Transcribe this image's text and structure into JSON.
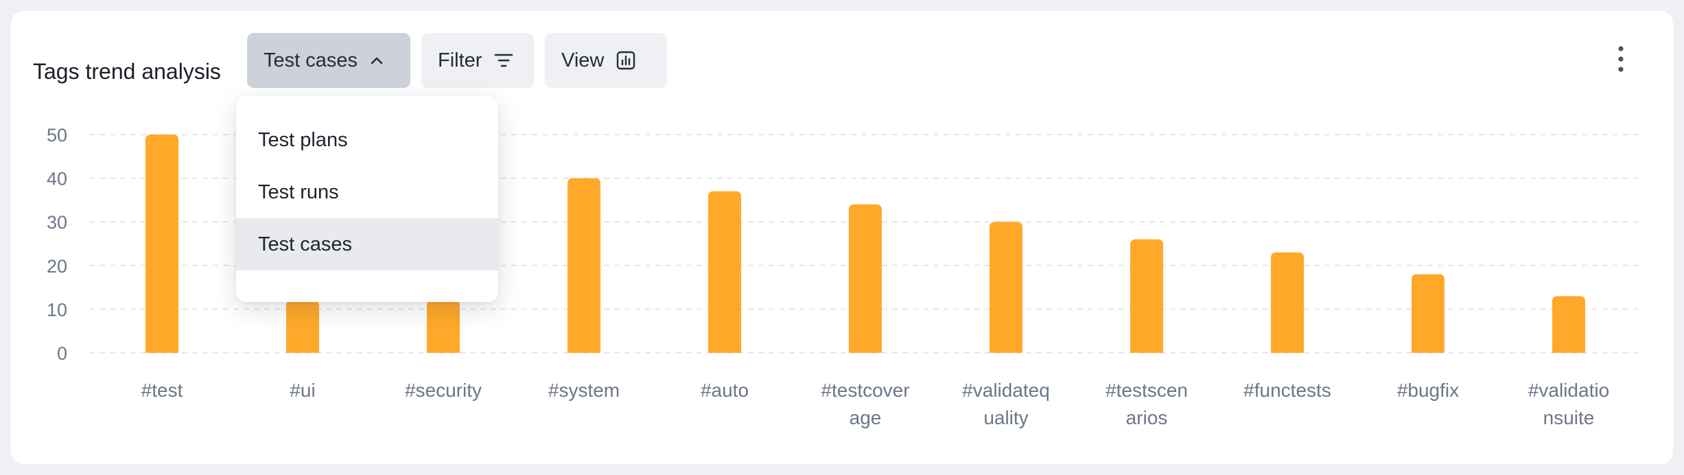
{
  "header": {
    "title": "Tags trend analysis",
    "type_button_label": "Test cases",
    "filter_label": "Filter",
    "view_label": "View"
  },
  "dropdown": {
    "items": [
      {
        "label": "Test plans",
        "selected": false
      },
      {
        "label": "Test runs",
        "selected": false
      },
      {
        "label": "Test cases",
        "selected": true
      }
    ]
  },
  "colors": {
    "bar": "#ffa82a",
    "grid": "#e3e6eb",
    "axis_text": "#6c7688"
  },
  "chart_data": {
    "type": "bar",
    "title": "",
    "xlabel": "",
    "ylabel": "",
    "ylim": [
      0,
      50
    ],
    "yticks": [
      0,
      10,
      20,
      30,
      40,
      50
    ],
    "grid": true,
    "categories": [
      "#test",
      "#ui",
      "#security",
      "#system",
      "#auto",
      "#testcoverage",
      "#validatequality",
      "#testscenarios",
      "#functests",
      "#bugfix",
      "#validationsuite"
    ],
    "category_lines": [
      [
        "#test"
      ],
      [
        "#ui"
      ],
      [
        "#security"
      ],
      [
        "#system"
      ],
      [
        "#auto"
      ],
      [
        "#testcover",
        "age"
      ],
      [
        "#validateq",
        "uality"
      ],
      [
        "#testscen",
        "arios"
      ],
      [
        "#functests"
      ],
      [
        "#bugfix"
      ],
      [
        "#validatio",
        "nsuite"
      ]
    ],
    "values": [
      50,
      12,
      12,
      40,
      37,
      34,
      30,
      26,
      23,
      18,
      13
    ]
  }
}
